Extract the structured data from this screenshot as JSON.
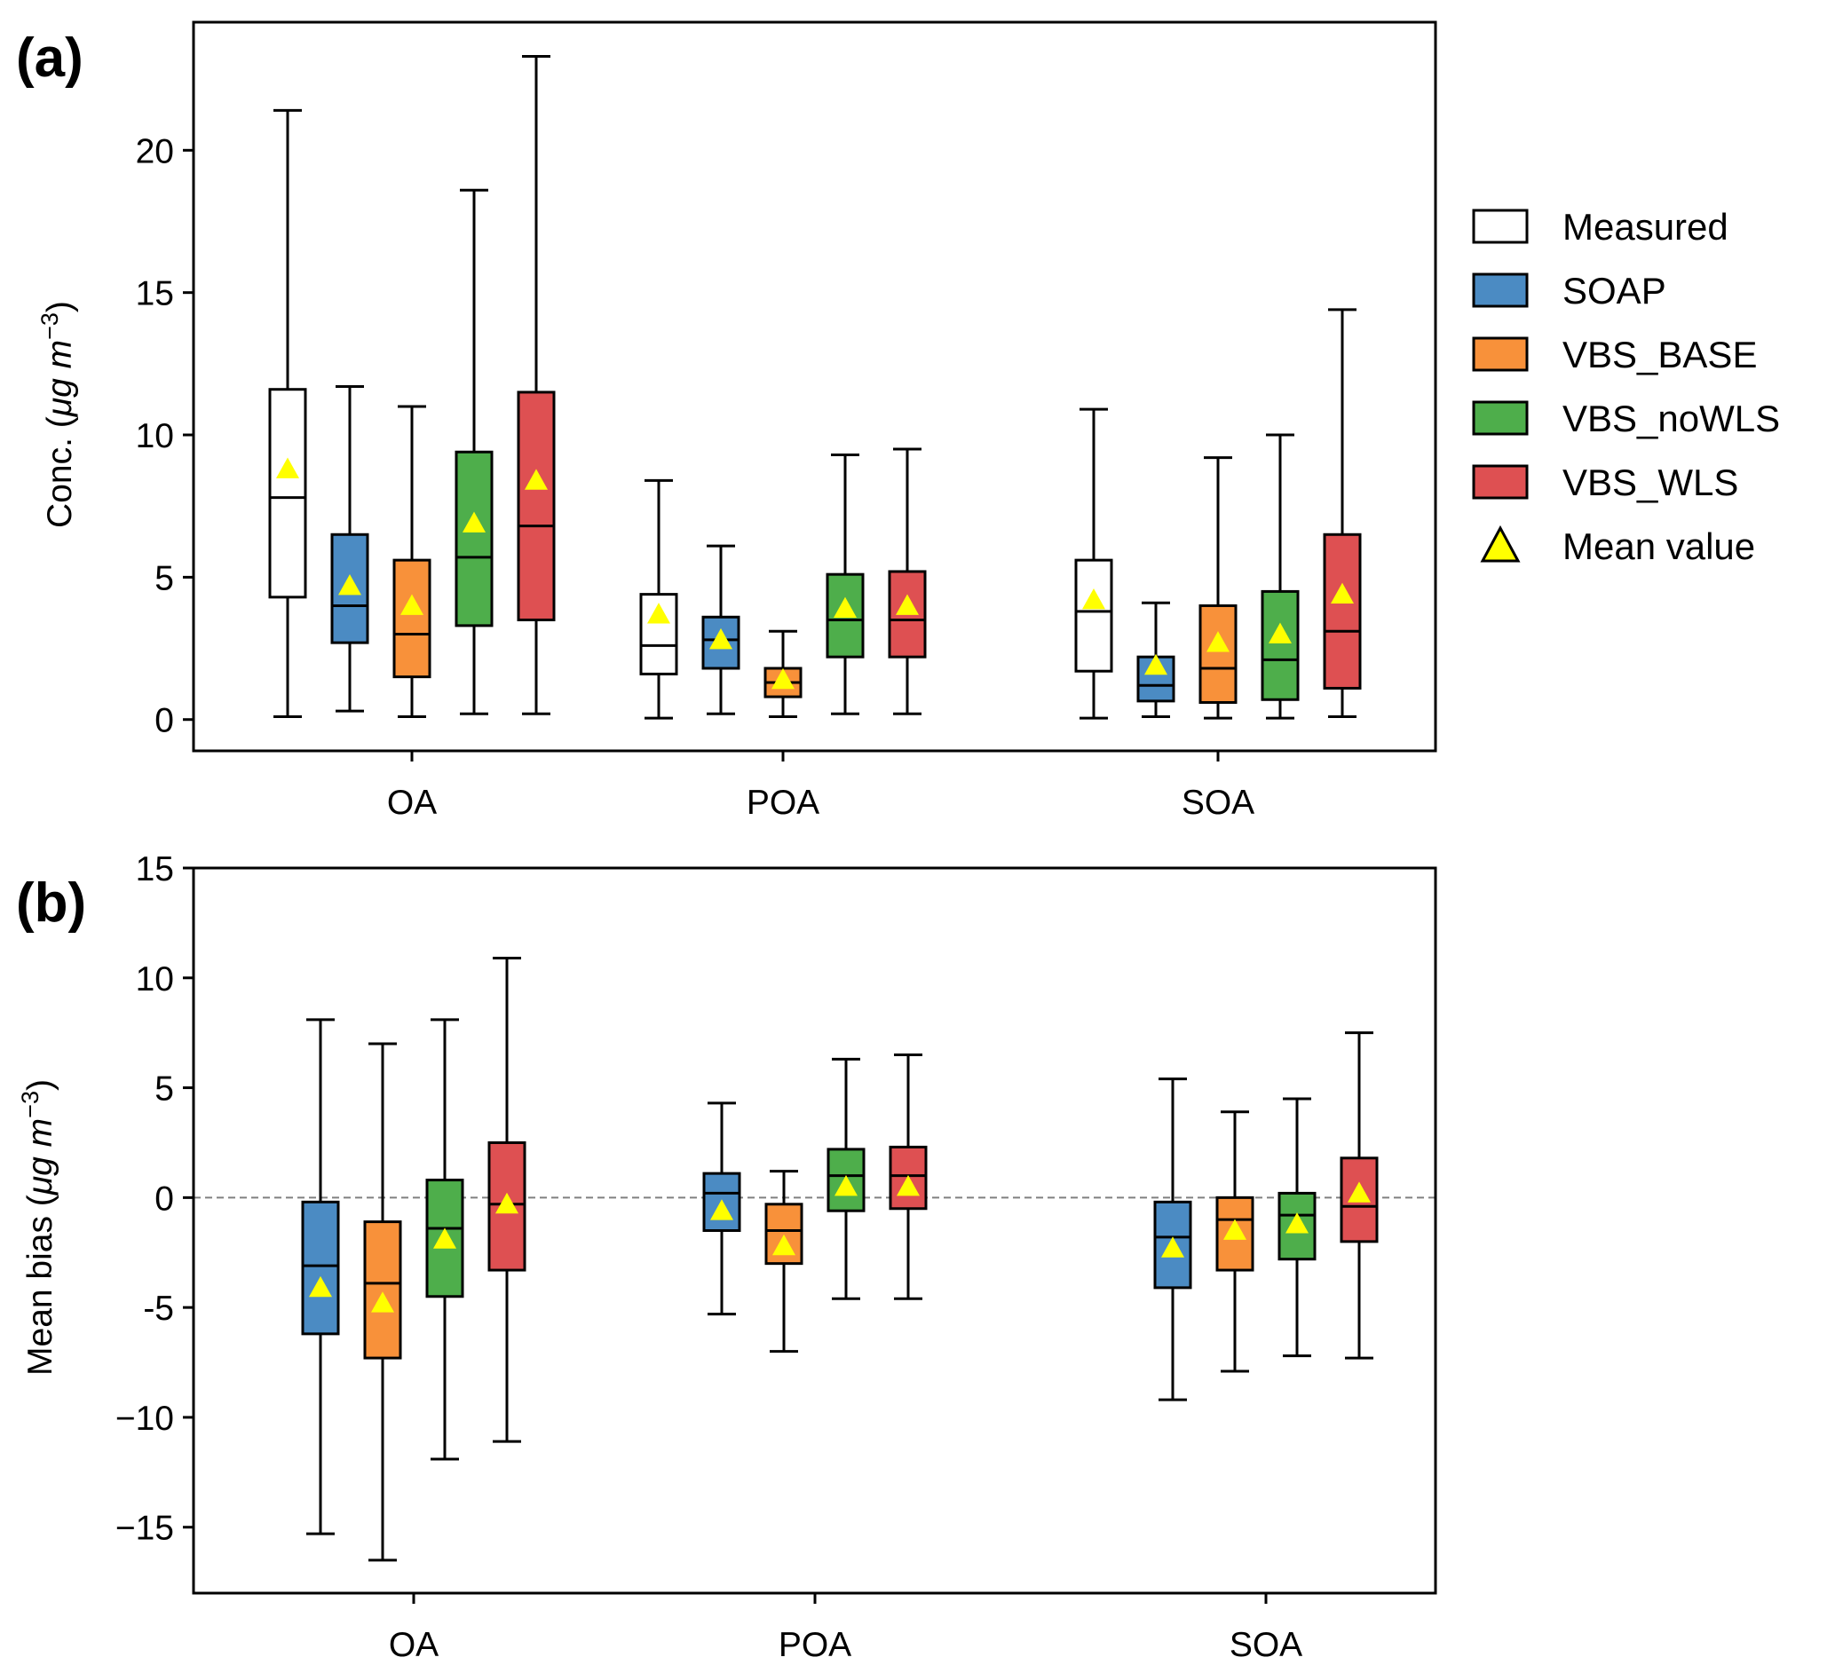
{
  "chart_data": [
    {
      "type": "box",
      "panel_label": "(a)",
      "ylabel": "Conc. (μg m⁻³)",
      "ylabel_parts": {
        "prefix": "Conc. (",
        "italic": "μg m",
        "sup": "−3",
        "suffix": ")"
      },
      "ylim": [
        -1.1,
        24.5
      ],
      "yticks": [
        0,
        5,
        10,
        15,
        20
      ],
      "ytick_labels": [
        "0",
        "5",
        "10",
        "15",
        "20"
      ],
      "categories": [
        "OA",
        "POA",
        "SOA"
      ],
      "series": [
        {
          "name": "Measured",
          "color": "#ffffff",
          "boxes": [
            {
              "category": "OA",
              "whislo": 0.1,
              "q1": 4.3,
              "median": 7.8,
              "q3": 11.6,
              "whishi": 21.4,
              "mean": 8.8
            },
            {
              "category": "POA",
              "whislo": 0.05,
              "q1": 1.6,
              "median": 2.6,
              "q3": 4.4,
              "whishi": 8.4,
              "mean": 3.7
            },
            {
              "category": "SOA",
              "whislo": 0.05,
              "q1": 1.7,
              "median": 3.8,
              "q3": 5.6,
              "whishi": 10.9,
              "mean": 4.2
            }
          ]
        },
        {
          "name": "SOAP",
          "color": "#4b8bc3",
          "boxes": [
            {
              "category": "OA",
              "whislo": 0.3,
              "q1": 2.7,
              "median": 4.0,
              "q3": 6.5,
              "whishi": 11.7,
              "mean": 4.7
            },
            {
              "category": "POA",
              "whislo": 0.2,
              "q1": 1.8,
              "median": 2.8,
              "q3": 3.6,
              "whishi": 6.1,
              "mean": 2.8
            },
            {
              "category": "SOA",
              "whislo": 0.1,
              "q1": 0.65,
              "median": 1.2,
              "q3": 2.2,
              "whishi": 4.1,
              "mean": 1.9
            }
          ]
        },
        {
          "name": "VBS_BASE",
          "color": "#f8913a",
          "boxes": [
            {
              "category": "OA",
              "whislo": 0.1,
              "q1": 1.5,
              "median": 3.0,
              "q3": 5.6,
              "whishi": 11.0,
              "mean": 4.0
            },
            {
              "category": "POA",
              "whislo": 0.1,
              "q1": 0.8,
              "median": 1.3,
              "q3": 1.8,
              "whishi": 3.1,
              "mean": 1.4
            },
            {
              "category": "SOA",
              "whislo": 0.05,
              "q1": 0.6,
              "median": 1.8,
              "q3": 4.0,
              "whishi": 9.2,
              "mean": 2.7
            }
          ]
        },
        {
          "name": "VBS_noWLS",
          "color": "#4eae4b",
          "boxes": [
            {
              "category": "OA",
              "whislo": 0.2,
              "q1": 3.3,
              "median": 5.7,
              "q3": 9.4,
              "whishi": 18.6,
              "mean": 6.9
            },
            {
              "category": "POA",
              "whislo": 0.2,
              "q1": 2.2,
              "median": 3.5,
              "q3": 5.1,
              "whishi": 9.3,
              "mean": 3.9
            },
            {
              "category": "SOA",
              "whislo": 0.05,
              "q1": 0.7,
              "median": 2.1,
              "q3": 4.5,
              "whishi": 10.0,
              "mean": 3.0
            }
          ]
        },
        {
          "name": "VBS_WLS",
          "color": "#de5052",
          "boxes": [
            {
              "category": "OA",
              "whislo": 0.2,
              "q1": 3.5,
              "median": 6.8,
              "q3": 11.5,
              "whishi": 23.3,
              "mean": 8.4
            },
            {
              "category": "POA",
              "whislo": 0.2,
              "q1": 2.2,
              "median": 3.5,
              "q3": 5.2,
              "whishi": 9.5,
              "mean": 4.0
            },
            {
              "category": "SOA",
              "whislo": 0.1,
              "q1": 1.1,
              "median": 3.1,
              "q3": 6.5,
              "whishi": 14.4,
              "mean": 4.4
            }
          ]
        }
      ],
      "legend": {
        "position": "right",
        "entries": [
          "Measured",
          "SOAP",
          "VBS_BASE",
          "VBS_noWLS",
          "VBS_WLS",
          "Mean value"
        ]
      }
    },
    {
      "type": "box",
      "panel_label": "(b)",
      "ylabel": "Mean bias (μg m⁻³)",
      "ylabel_parts": {
        "prefix": "Mean bias (",
        "italic": "μg m",
        "sup": "−3",
        "suffix": ")"
      },
      "ylim": [
        -18.0,
        15.0
      ],
      "yticks": [
        -15,
        -10,
        -5,
        0,
        5,
        10,
        15
      ],
      "ytick_labels": [
        "−15",
        "−10",
        "-5",
        "0",
        "5",
        "10",
        "15"
      ],
      "categories": [
        "OA",
        "POA",
        "SOA"
      ],
      "reference_line": {
        "y": 0,
        "style": "dashed",
        "color": "#808080"
      },
      "series": [
        {
          "name": "SOAP",
          "color": "#4b8bc3",
          "boxes": [
            {
              "category": "OA",
              "whislo": -15.3,
              "q1": -6.2,
              "median": -3.1,
              "q3": -0.2,
              "whishi": 8.1,
              "mean": -4.1
            },
            {
              "category": "POA",
              "whislo": -5.3,
              "q1": -1.5,
              "median": 0.2,
              "q3": 1.1,
              "whishi": 4.3,
              "mean": -0.6
            },
            {
              "category": "SOA",
              "whislo": -9.2,
              "q1": -4.1,
              "median": -1.8,
              "q3": -0.2,
              "whishi": 5.4,
              "mean": -2.3
            }
          ]
        },
        {
          "name": "VBS_BASE",
          "color": "#f8913a",
          "boxes": [
            {
              "category": "OA",
              "whislo": -16.5,
              "q1": -7.3,
              "median": -3.9,
              "q3": -1.1,
              "whishi": 7.0,
              "mean": -4.8
            },
            {
              "category": "POA",
              "whislo": -7.0,
              "q1": -3.0,
              "median": -1.5,
              "q3": -0.3,
              "whishi": 1.2,
              "mean": -2.2
            },
            {
              "category": "SOA",
              "whislo": -7.9,
              "q1": -3.3,
              "median": -1.0,
              "q3": 0.0,
              "whishi": 3.9,
              "mean": -1.5
            }
          ]
        },
        {
          "name": "VBS_noWLS",
          "color": "#4eae4b",
          "boxes": [
            {
              "category": "OA",
              "whislo": -11.9,
              "q1": -4.5,
              "median": -1.4,
              "q3": 0.8,
              "whishi": 8.1,
              "mean": -1.9
            },
            {
              "category": "POA",
              "whislo": -4.6,
              "q1": -0.6,
              "median": 1.0,
              "q3": 2.2,
              "whishi": 6.3,
              "mean": 0.5
            },
            {
              "category": "SOA",
              "whislo": -7.2,
              "q1": -2.8,
              "median": -0.8,
              "q3": 0.2,
              "whishi": 4.5,
              "mean": -1.2
            }
          ]
        },
        {
          "name": "VBS_WLS",
          "color": "#de5052",
          "boxes": [
            {
              "category": "OA",
              "whislo": -11.1,
              "q1": -3.3,
              "median": -0.3,
              "q3": 2.5,
              "whishi": 10.9,
              "mean": -0.3
            },
            {
              "category": "POA",
              "whislo": -4.6,
              "q1": -0.5,
              "median": 1.0,
              "q3": 2.3,
              "whishi": 6.5,
              "mean": 0.5
            },
            {
              "category": "SOA",
              "whislo": -7.3,
              "q1": -2.0,
              "median": -0.4,
              "q3": 1.8,
              "whishi": 7.5,
              "mean": 0.2
            }
          ]
        }
      ]
    }
  ],
  "colors": {
    "mean_marker": "#ffff00",
    "axis": "#000000",
    "zero_line": "#808080"
  }
}
